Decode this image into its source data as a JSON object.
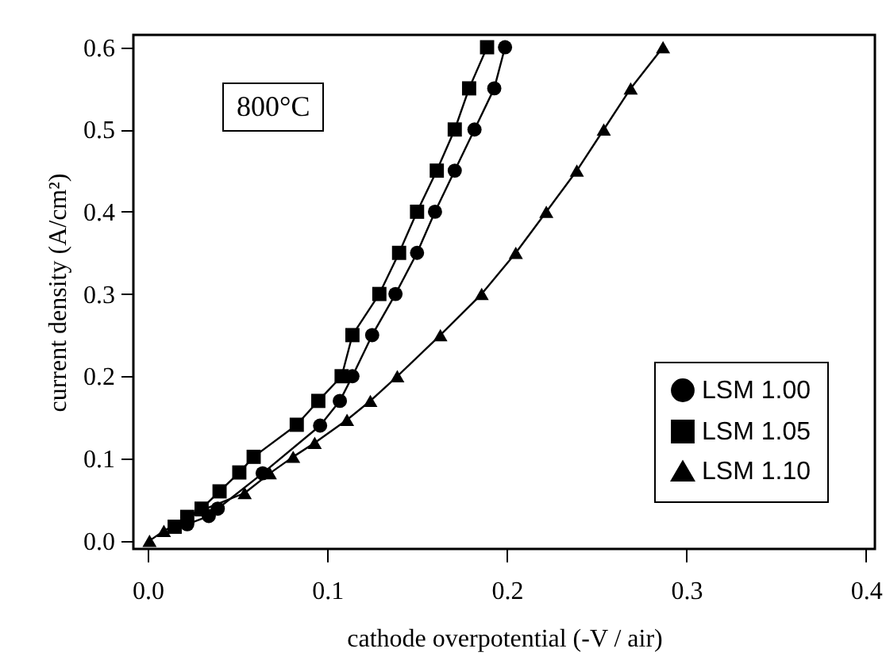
{
  "chart_data": {
    "type": "line",
    "xlabel": "cathode overpotential (-V / air)",
    "ylabel": "current density (A/cm²)",
    "annotations": [
      "800°C"
    ],
    "xlim": [
      -0.008,
      0.405
    ],
    "ylim": [
      -0.01,
      0.615
    ],
    "xticks": [
      {
        "value": 0,
        "label": "0.0"
      },
      0.1,
      0.2,
      0.3,
      0.4
    ],
    "yticks": [
      {
        "value": 0,
        "label": "0.0"
      },
      0.1,
      0.2,
      0.3,
      0.4,
      0.5,
      0.6
    ],
    "grid": false,
    "legend": "bottom right",
    "line_style": "solid",
    "series": [
      {
        "name": "LSM 1.00",
        "color": "#000000",
        "marker": "circle",
        "x": [
          0.022,
          0.034,
          0.039,
          0.064,
          0.096,
          0.107,
          0.114,
          0.125,
          0.138,
          0.15,
          0.16,
          0.171,
          0.182,
          0.193,
          0.199
        ],
        "values": [
          0.02,
          0.03,
          0.039,
          0.082,
          0.14,
          0.17,
          0.2,
          0.25,
          0.3,
          0.35,
          0.4,
          0.45,
          0.5,
          0.55,
          0.6
        ]
      },
      {
        "name": "LSM 1.05",
        "color": "#000000",
        "marker": "square",
        "x": [
          0.015,
          0.022,
          0.03,
          0.04,
          0.051,
          0.059,
          0.083,
          0.095,
          0.108,
          0.114,
          0.129,
          0.14,
          0.15,
          0.161,
          0.171,
          0.179,
          0.189
        ],
        "values": [
          0.017,
          0.029,
          0.039,
          0.06,
          0.083,
          0.102,
          0.141,
          0.17,
          0.2,
          0.25,
          0.3,
          0.35,
          0.4,
          0.45,
          0.5,
          0.55,
          0.6
        ]
      },
      {
        "name": "LSM 1.10",
        "color": "#000000",
        "marker": "triangle",
        "x": [
          0.001,
          0.009,
          0.03,
          0.054,
          0.068,
          0.081,
          0.093,
          0.111,
          0.124,
          0.139,
          0.163,
          0.186,
          0.205,
          0.222,
          0.239,
          0.254,
          0.269,
          0.287
        ],
        "values": [
          0,
          0.012,
          0.037,
          0.058,
          0.082,
          0.102,
          0.119,
          0.147,
          0.17,
          0.2,
          0.25,
          0.3,
          0.35,
          0.4,
          0.45,
          0.5,
          0.55,
          0.6
        ]
      }
    ]
  }
}
